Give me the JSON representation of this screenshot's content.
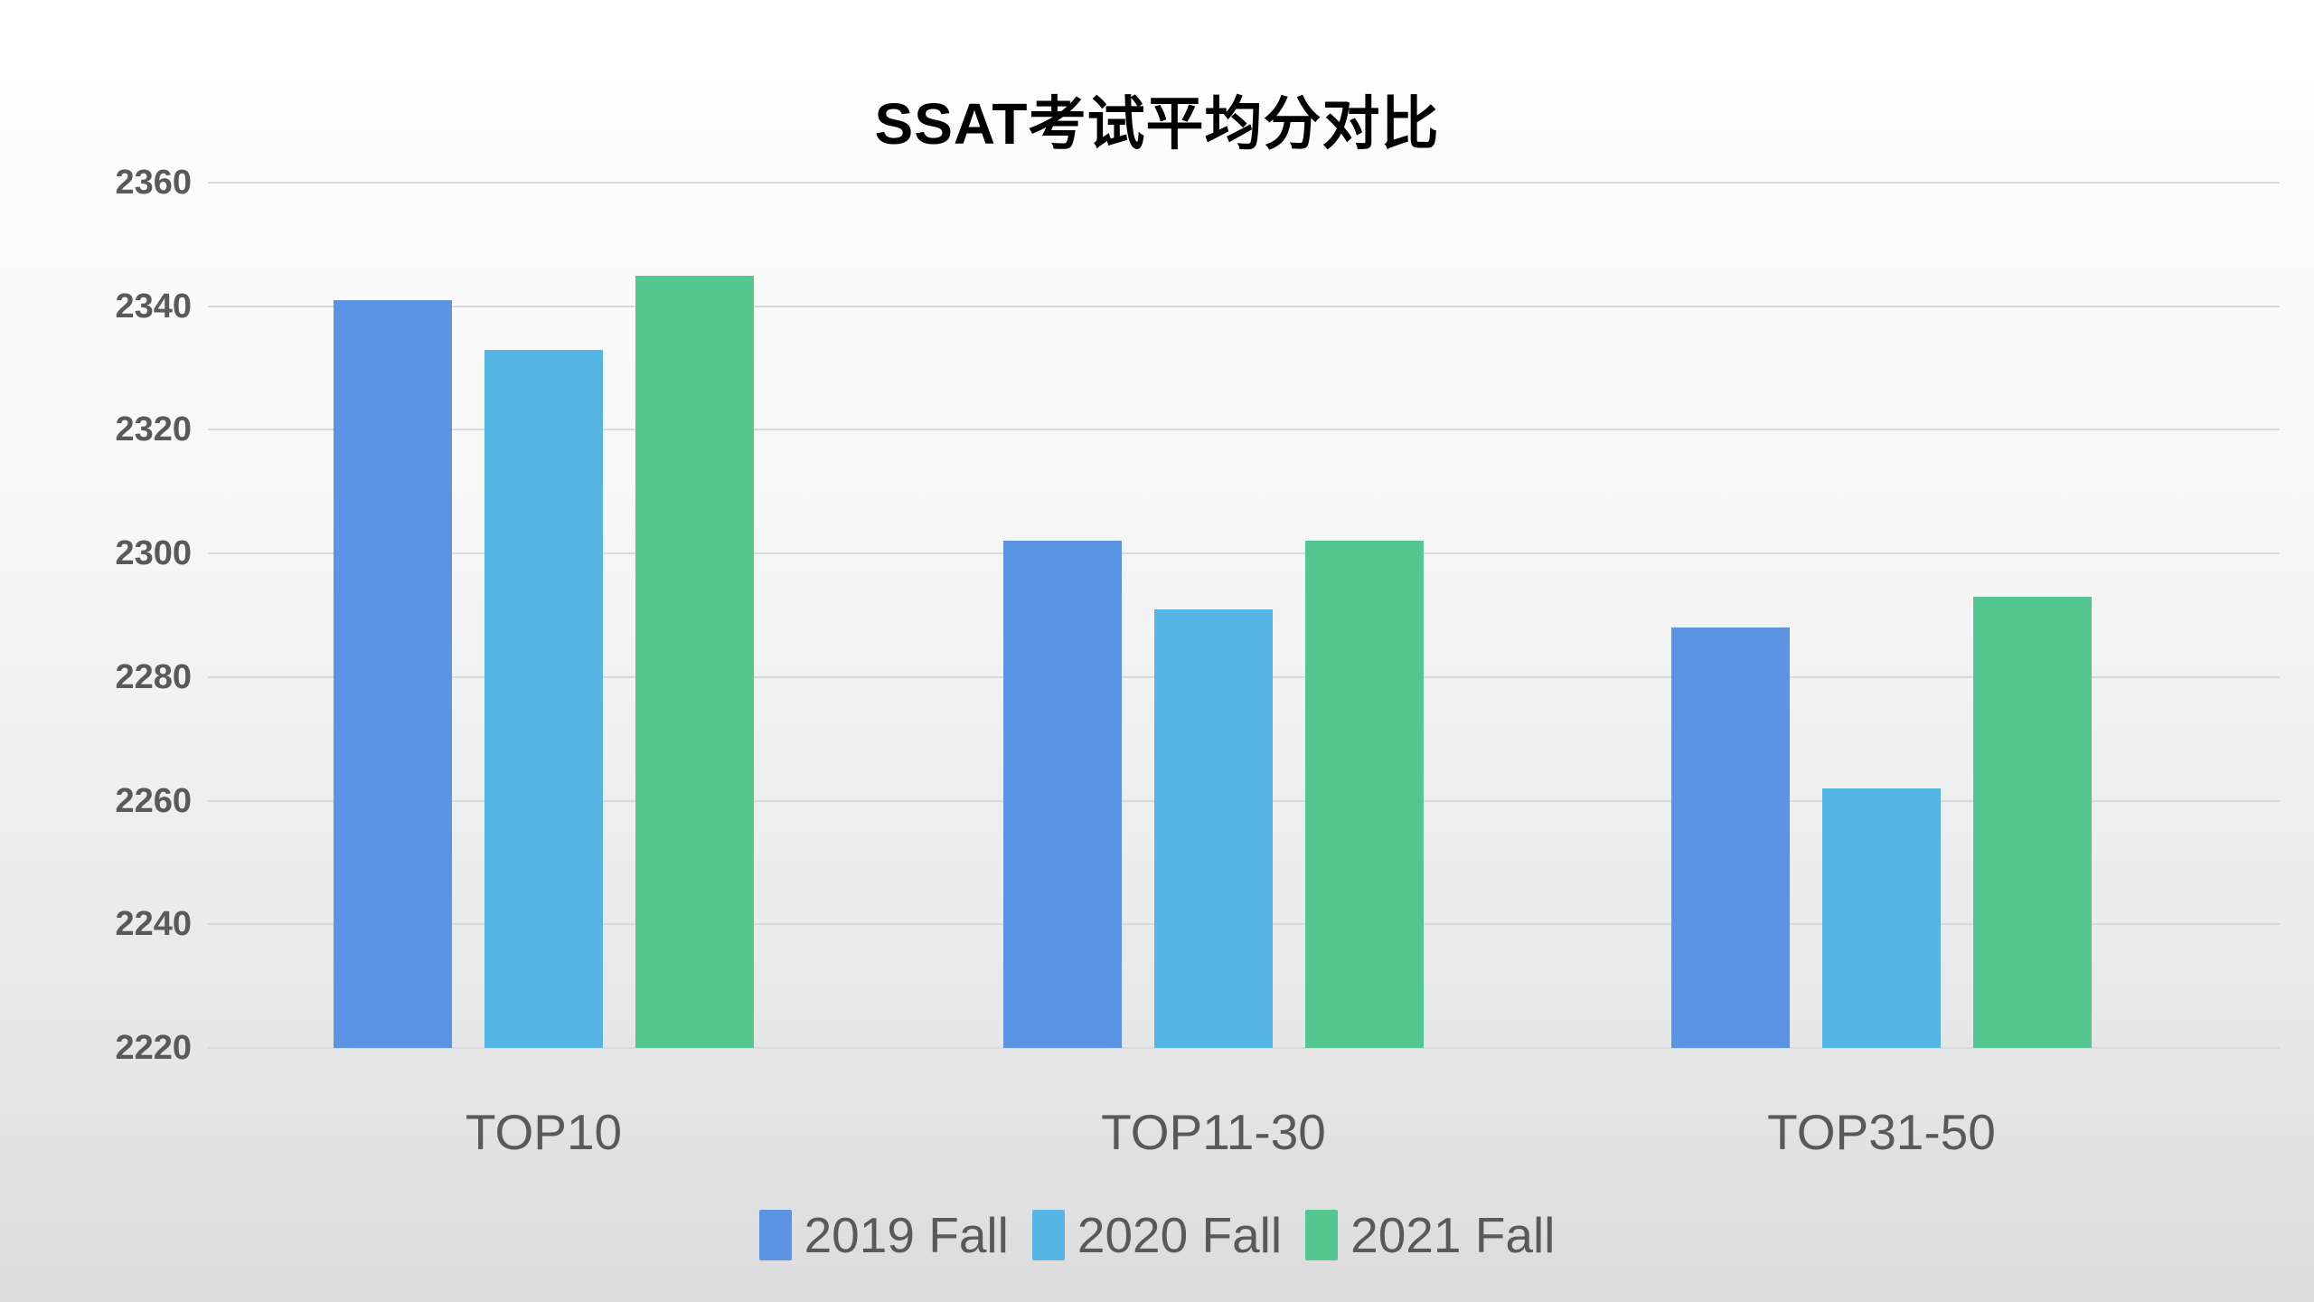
{
  "chart_data": {
    "type": "bar",
    "title": "SSAT考试平均分对比",
    "categories": [
      "TOP10",
      "TOP11-30",
      "TOP31-50"
    ],
    "series": [
      {
        "name": "2019 Fall",
        "color": "#5B94E2",
        "values": [
          2341,
          2302,
          2288
        ]
      },
      {
        "name": "2020 Fall",
        "color": "#55B5E4",
        "values": [
          2333,
          2291,
          2262
        ]
      },
      {
        "name": "2021 Fall",
        "color": "#54C690",
        "values": [
          2345,
          2302,
          2293
        ]
      }
    ],
    "ylim": [
      2220,
      2360
    ],
    "yticks": [
      2360,
      2340,
      2320,
      2300,
      2280,
      2260,
      2240,
      2220
    ],
    "ytick_interval": 20,
    "grid": "horizontal",
    "legend_position": "bottom",
    "colors": {
      "title_text": "#000000",
      "axis_text": "#595959",
      "gridline": "#d9d9d9",
      "background_top": "#ffffff",
      "background_bottom": "#dcdcdc"
    }
  }
}
